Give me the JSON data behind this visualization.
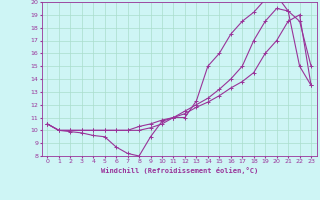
{
  "xlabel": "Windchill (Refroidissement éolien,°C)",
  "background_color": "#cef5f5",
  "grid_color": "#aaddcc",
  "line_color": "#993399",
  "xlim": [
    -0.5,
    23.5
  ],
  "ylim": [
    8,
    20
  ],
  "xticks": [
    0,
    1,
    2,
    3,
    4,
    5,
    6,
    7,
    8,
    9,
    10,
    11,
    12,
    13,
    14,
    15,
    16,
    17,
    18,
    19,
    20,
    21,
    22,
    23
  ],
  "yticks": [
    8,
    9,
    10,
    11,
    12,
    13,
    14,
    15,
    16,
    17,
    18,
    19,
    20
  ],
  "line1_x": [
    0,
    1,
    2,
    3,
    4,
    5,
    6,
    7,
    8,
    9,
    10,
    11,
    12,
    13,
    14,
    15,
    16,
    17,
    18,
    19,
    20,
    21,
    22,
    23
  ],
  "line1_y": [
    10.5,
    10.0,
    9.9,
    9.8,
    9.6,
    9.5,
    8.7,
    8.2,
    8.0,
    9.5,
    10.7,
    11.0,
    11.0,
    12.3,
    15.0,
    16.0,
    17.5,
    18.5,
    19.2,
    20.2,
    20.5,
    19.3,
    18.5,
    15.0
  ],
  "line2_x": [
    0,
    1,
    2,
    3,
    4,
    5,
    6,
    7,
    8,
    9,
    10,
    11,
    12,
    13,
    14,
    15,
    16,
    17,
    18,
    19,
    20,
    21,
    22,
    23
  ],
  "line2_y": [
    10.5,
    10.0,
    10.0,
    10.0,
    10.0,
    10.0,
    10.0,
    10.0,
    10.3,
    10.5,
    10.8,
    11.0,
    11.5,
    12.0,
    12.5,
    13.2,
    14.0,
    15.0,
    17.0,
    18.5,
    19.5,
    19.3,
    15.0,
    13.5
  ],
  "line3_x": [
    0,
    1,
    2,
    3,
    4,
    5,
    6,
    7,
    8,
    9,
    10,
    11,
    12,
    13,
    14,
    15,
    16,
    17,
    18,
    19,
    20,
    21,
    22,
    23
  ],
  "line3_y": [
    10.5,
    10.0,
    10.0,
    10.0,
    10.0,
    10.0,
    10.0,
    10.0,
    10.0,
    10.2,
    10.5,
    11.0,
    11.3,
    11.8,
    12.2,
    12.7,
    13.3,
    13.8,
    14.5,
    16.0,
    17.0,
    18.5,
    19.0,
    13.5
  ]
}
